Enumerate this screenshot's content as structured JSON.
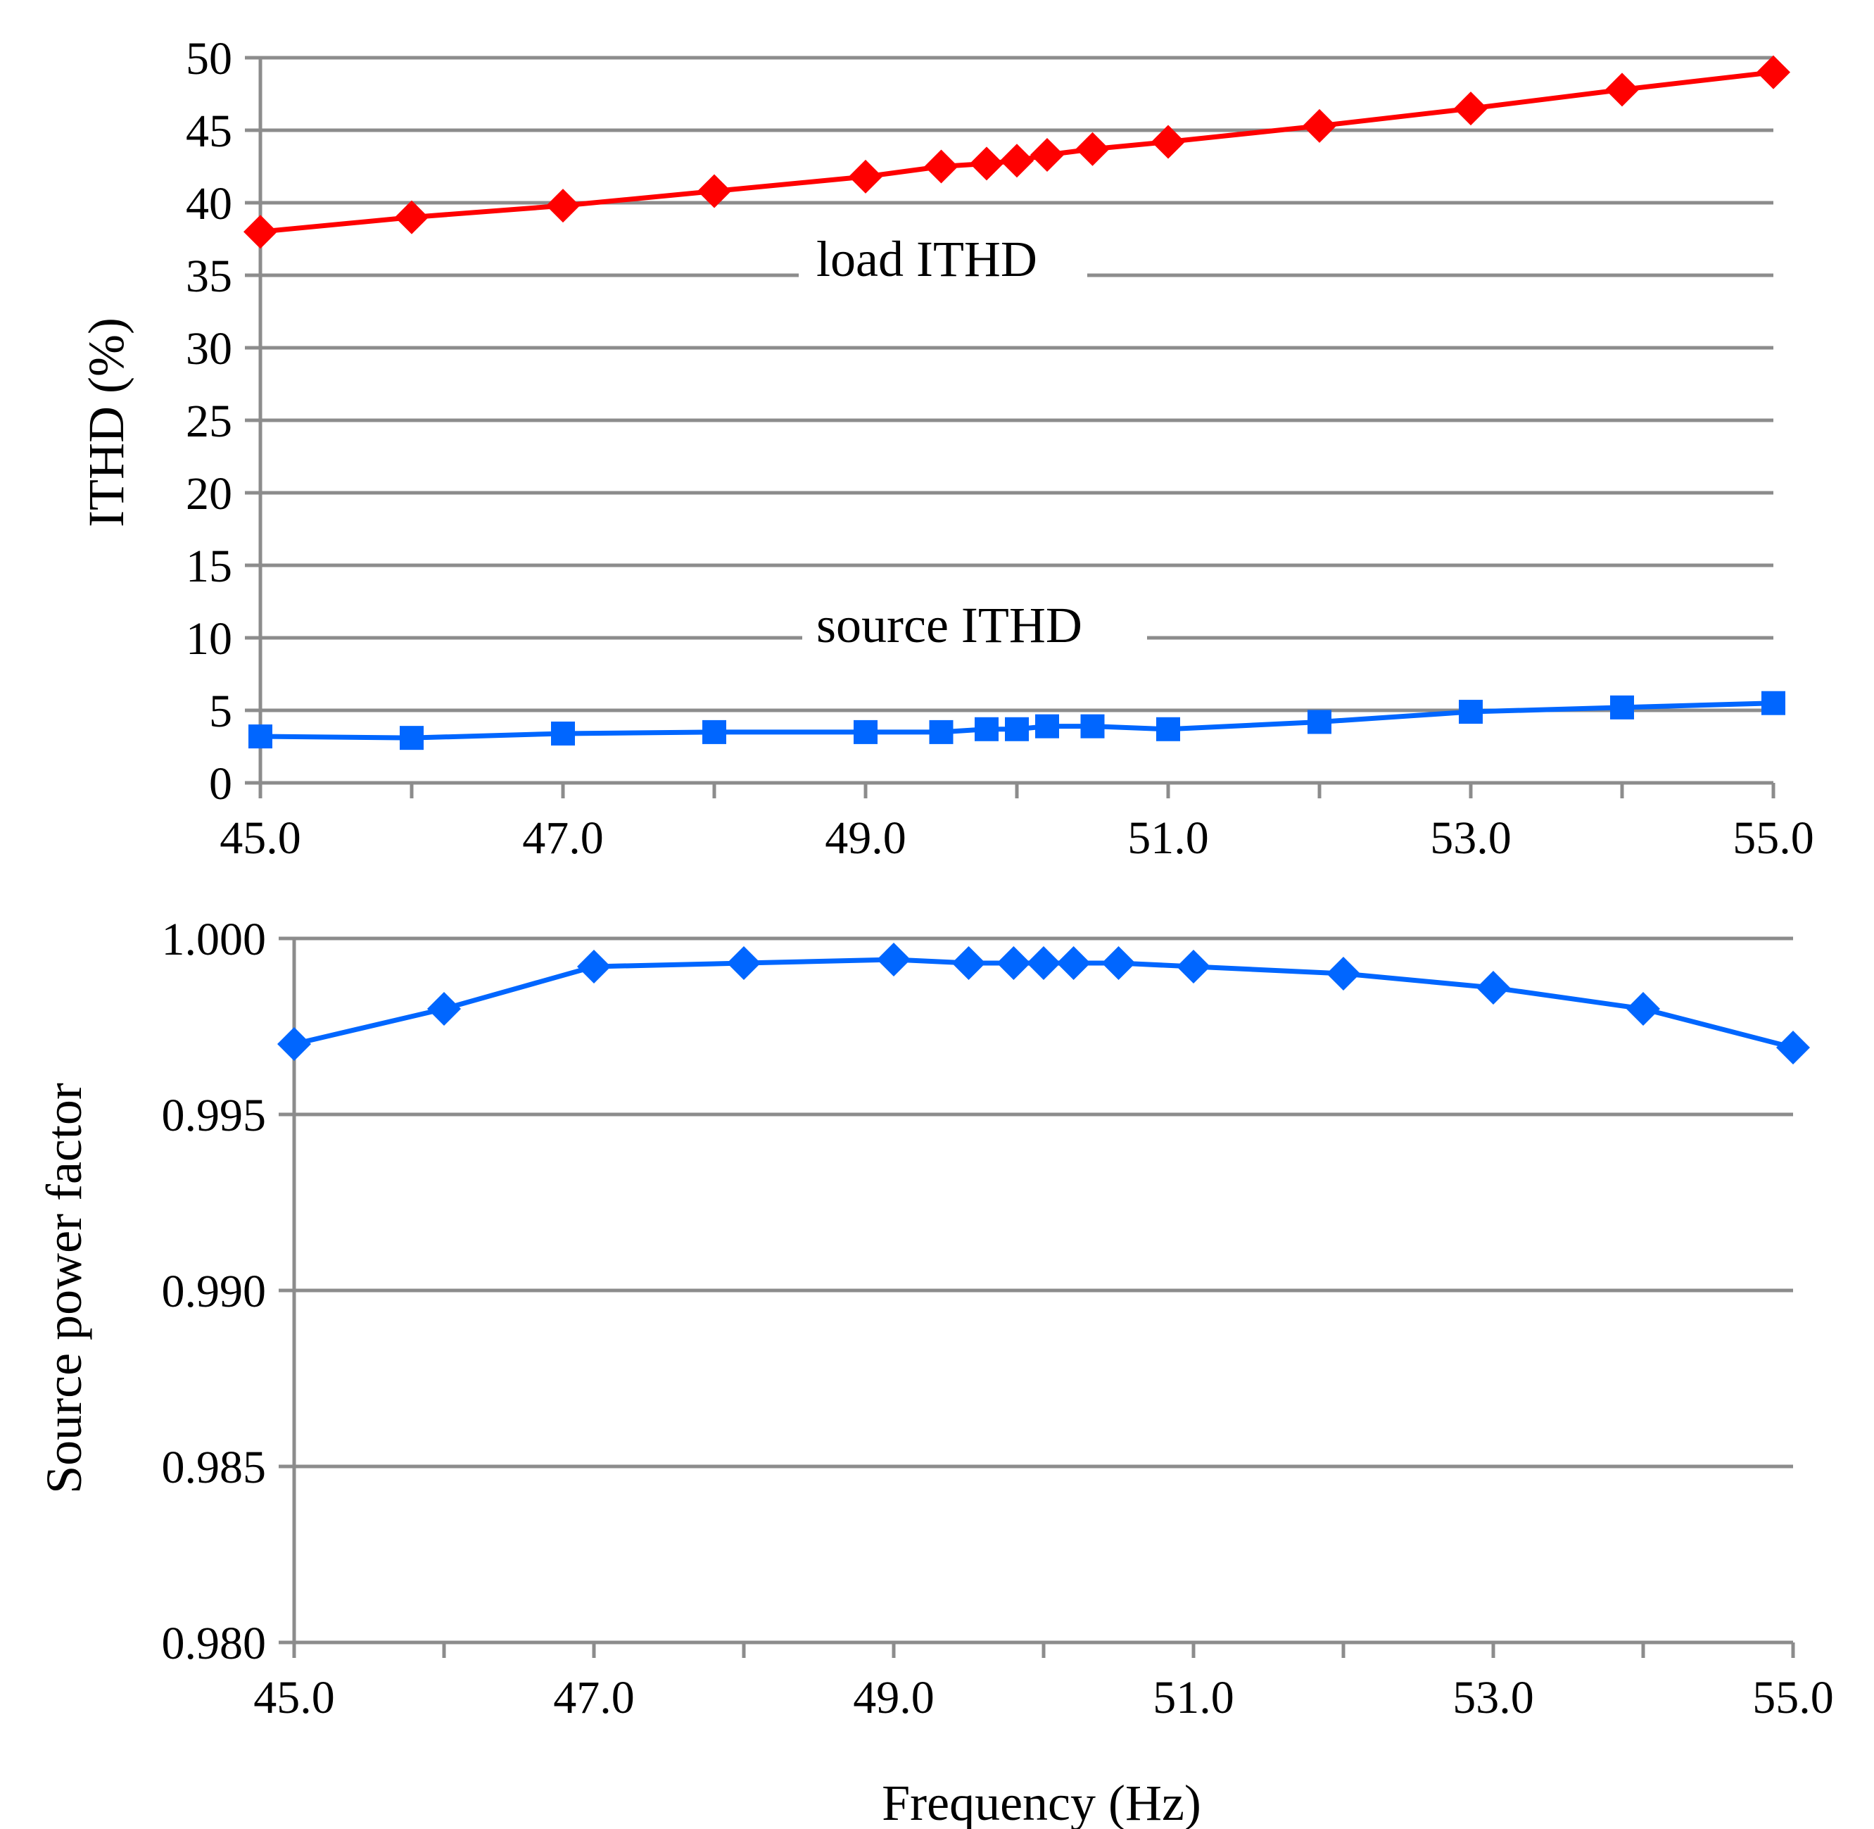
{
  "chart_data": [
    {
      "type": "line",
      "ylabel": "ITHD (%)",
      "xlabel": "",
      "xlim": [
        45.0,
        55.0
      ],
      "ylim": [
        0,
        50
      ],
      "x_ticks": [
        "45.0",
        "47.0",
        "49.0",
        "51.0",
        "53.0",
        "55.0"
      ],
      "y_ticks": [
        "0",
        "5",
        "10",
        "15",
        "20",
        "25",
        "30",
        "35",
        "40",
        "45",
        "50"
      ],
      "grid": true,
      "series": [
        {
          "name": "load ITHD",
          "color": "#ff0000",
          "marker": "diamond",
          "x": [
            45.0,
            46.0,
            47.0,
            48.0,
            49.0,
            49.5,
            49.8,
            50.0,
            50.2,
            50.5,
            51.0,
            52.0,
            53.0,
            54.0,
            55.0
          ],
          "values": [
            38.0,
            39.0,
            39.8,
            40.8,
            41.8,
            42.5,
            42.7,
            42.9,
            43.3,
            43.7,
            44.2,
            45.3,
            46.5,
            47.8,
            49.0
          ]
        },
        {
          "name": "source ITHD",
          "color": "#0066ff",
          "marker": "square",
          "x": [
            45.0,
            46.0,
            47.0,
            48.0,
            49.0,
            49.5,
            49.8,
            50.0,
            50.2,
            50.5,
            51.0,
            52.0,
            53.0,
            54.0,
            55.0
          ],
          "values": [
            3.2,
            3.1,
            3.4,
            3.5,
            3.5,
            3.5,
            3.7,
            3.7,
            3.9,
            3.9,
            3.7,
            4.2,
            4.9,
            5.2,
            5.5
          ]
        }
      ],
      "annotations": [
        "load ITHD",
        "source ITHD"
      ]
    },
    {
      "type": "line",
      "ylabel": "Source power factor",
      "xlabel": "Frequency (Hz)",
      "xlim": [
        45.0,
        55.0
      ],
      "ylim": [
        0.98,
        1.0
      ],
      "x_ticks": [
        "45.0",
        "47.0",
        "49.0",
        "51.0",
        "53.0",
        "55.0"
      ],
      "y_ticks": [
        "0.980",
        "0.985",
        "0.990",
        "0.995",
        "1.000"
      ],
      "grid": true,
      "series": [
        {
          "name": "Source power factor",
          "color": "#0066ff",
          "marker": "diamond",
          "x": [
            45.0,
            46.0,
            47.0,
            48.0,
            49.0,
            49.5,
            49.8,
            50.0,
            50.2,
            50.5,
            51.0,
            52.0,
            53.0,
            54.0,
            55.0
          ],
          "values": [
            0.997,
            0.998,
            0.9992,
            0.9993,
            0.9994,
            0.9993,
            0.9993,
            0.9993,
            0.9993,
            0.9993,
            0.9992,
            0.999,
            0.9986,
            0.998,
            0.9969
          ]
        }
      ]
    }
  ]
}
